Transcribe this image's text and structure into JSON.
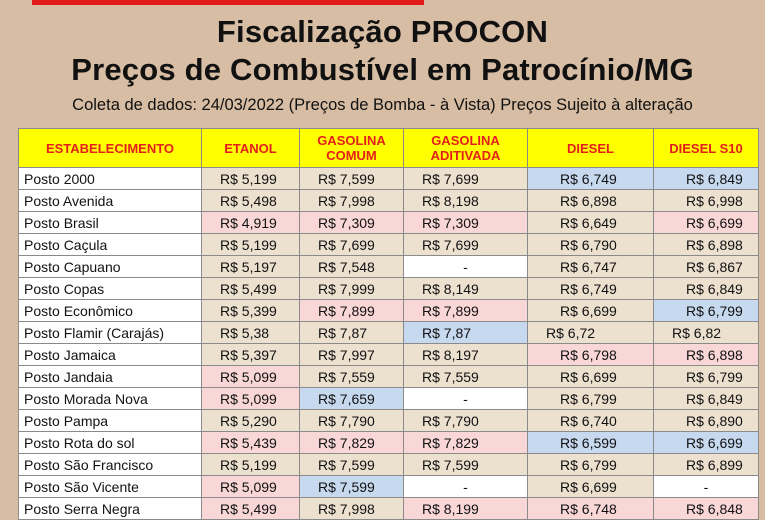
{
  "title_line1": "Fiscalização PROCON",
  "title_line2": "Preços de Combustível em Patrocínio/MG",
  "subtitle": "Coleta de dados: 24/03/2022 (Preços de Bomba - à Vista) Preços Sujeito à alteração",
  "columns": [
    "ESTABELECIMENTO",
    "ETANOL",
    "GASOLINA COMUM",
    "GASOLINA ADITIVADA",
    "DIESEL",
    "DIESEL S10"
  ],
  "column_lines": [
    [
      "ESTABELECIMENTO"
    ],
    [
      "ETANOL"
    ],
    [
      "GASOLINA",
      "COMUM"
    ],
    [
      "GASOLINA",
      "ADITIVADA"
    ],
    [
      "DIESEL"
    ],
    [
      "DIESEL S10"
    ]
  ],
  "colors": {
    "header_bg": "#ffff00",
    "header_text": "#e3201b",
    "lowest": "#c6d9ef",
    "highest": "#f9d7d7",
    "neutral": "#ece0cf"
  },
  "rows": [
    {
      "name": "Posto 2000",
      "cells": [
        "R$ 5,199",
        "R$ 7,599",
        "R$ 7,699",
        "R$ 6,749",
        "R$ 6,849"
      ],
      "shade": [
        "g",
        "g",
        "g",
        "b",
        "b"
      ]
    },
    {
      "name": "Posto Avenida",
      "cells": [
        "R$ 5,498",
        "R$ 7,998",
        "R$ 8,198",
        "R$ 6,898",
        "R$ 6,998"
      ],
      "shade": [
        "g",
        "g",
        "g",
        "g",
        "g"
      ]
    },
    {
      "name": "Posto Brasil",
      "cells": [
        "R$ 4,919",
        "R$ 7,309",
        "R$ 7,309",
        "R$ 6,649",
        "R$ 6,699"
      ],
      "shade": [
        "p",
        "p",
        "p",
        "g",
        "p"
      ]
    },
    {
      "name": "Posto Caçula",
      "cells": [
        "R$ 5,199",
        "R$ 7,699",
        "R$ 7,699",
        "R$ 6,790",
        "R$ 6,898"
      ],
      "shade": [
        "g",
        "g",
        "g",
        "g",
        "g"
      ]
    },
    {
      "name": "Posto Capuano",
      "cells": [
        "R$ 5,197",
        "R$ 7,548",
        "-",
        "R$ 6,747",
        "R$ 6,867"
      ],
      "shade": [
        "g",
        "g",
        "w",
        "g",
        "g"
      ]
    },
    {
      "name": "Posto Copas",
      "cells": [
        "R$ 5,499",
        "R$ 7,999",
        "R$ 8,149",
        "R$ 6,749",
        "R$ 6,849"
      ],
      "shade": [
        "g",
        "g",
        "g",
        "g",
        "g"
      ]
    },
    {
      "name": "Posto Econômico",
      "cells": [
        "R$ 5,399",
        "R$ 7,899",
        "R$ 7,899",
        "R$ 6,699",
        "R$ 6,799"
      ],
      "shade": [
        "g",
        "p",
        "p",
        "g",
        "b"
      ]
    },
    {
      "name": "Posto Flamir (Carajás)",
      "cells": [
        "R$ 5,38",
        "R$ 7,87",
        "R$ 7,87",
        "R$ 6,72",
        "R$ 6,82"
      ],
      "shade": [
        "g",
        "g",
        "b",
        "g",
        "g"
      ],
      "plain": true
    },
    {
      "name": "Posto Jamaica",
      "cells": [
        "R$ 5,397",
        "R$ 7,997",
        "R$ 8,197",
        "R$ 6,798",
        "R$ 6,898"
      ],
      "shade": [
        "g",
        "g",
        "g",
        "p",
        "p"
      ]
    },
    {
      "name": "Posto Jandaia",
      "cells": [
        "R$ 5,099",
        "R$ 7,559",
        "R$ 7,559",
        "R$ 6,699",
        "R$ 6,799"
      ],
      "shade": [
        "p",
        "g",
        "g",
        "g",
        "g"
      ]
    },
    {
      "name": "Posto Morada Nova",
      "cells": [
        "R$ 5,099",
        "R$ 7,659",
        "-",
        "R$ 6,799",
        "R$ 6,849"
      ],
      "shade": [
        "p",
        "b",
        "w",
        "g",
        "g"
      ]
    },
    {
      "name": "Posto Pampa",
      "cells": [
        "R$ 5,290",
        "R$ 7,790",
        "R$ 7,790",
        "R$ 6,740",
        "R$ 6,890"
      ],
      "shade": [
        "g",
        "g",
        "g",
        "g",
        "g"
      ]
    },
    {
      "name": "Posto Rota do sol",
      "cells": [
        "R$ 5,439",
        "R$ 7,829",
        "R$ 7,829",
        "R$ 6,599",
        "R$ 6,699"
      ],
      "shade": [
        "p",
        "p",
        "p",
        "b",
        "b"
      ]
    },
    {
      "name": "Posto São Francisco",
      "cells": [
        "R$ 5,199",
        "R$ 7,599",
        "R$ 7,599",
        "R$ 6,799",
        "R$ 6,899"
      ],
      "shade": [
        "g",
        "g",
        "g",
        "g",
        "g"
      ]
    },
    {
      "name": "Posto São Vicente",
      "cells": [
        "R$ 5,099",
        "R$ 7,599",
        "-",
        "R$ 6,699",
        "-"
      ],
      "shade": [
        "p",
        "b",
        "w",
        "g",
        "w"
      ]
    },
    {
      "name": "Posto Serra Negra",
      "cells": [
        "R$ 5,499",
        "R$ 7,998",
        "R$ 8,199",
        "R$ 6,748",
        "R$ 6,848"
      ],
      "shade": [
        "p",
        "g",
        "p",
        "p",
        "p"
      ]
    }
  ]
}
